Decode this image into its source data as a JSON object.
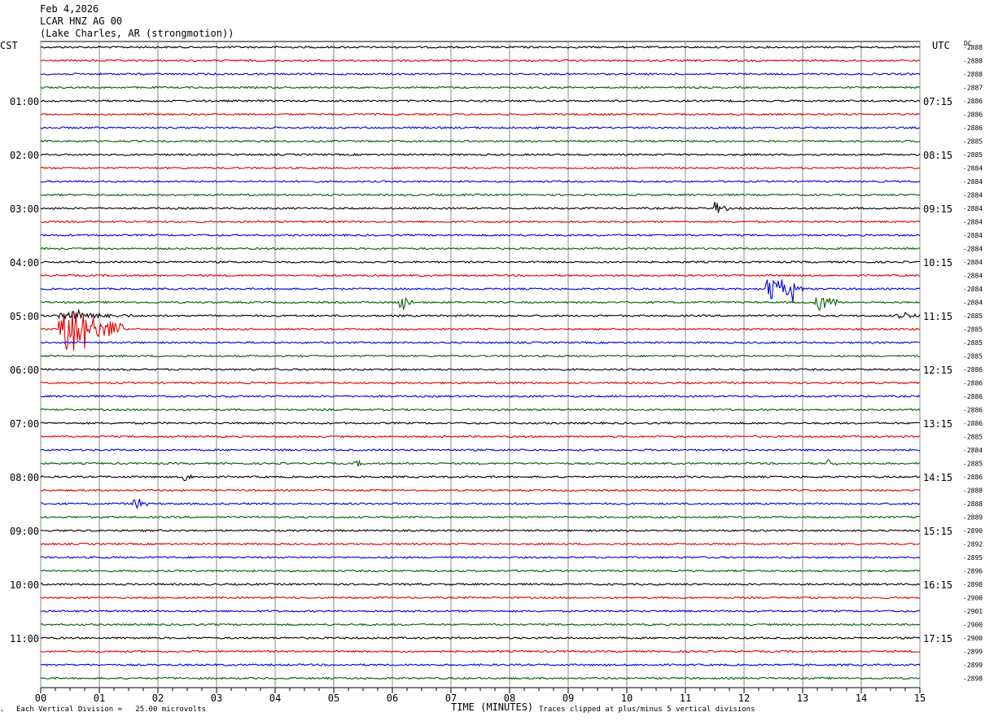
{
  "header": {
    "date": "Feb 4,2026",
    "station": "LCAR HNZ AG 00",
    "location": "(Lake Charles, AR (strongmotion))"
  },
  "left_zone_label": "CST",
  "right_zone_label": "UTC",
  "dc_label": "DC",
  "footer": {
    "scale_note": "Each Vertical Division =   25.00 microvolts",
    "xlabel": "TIME (MINUTES)",
    "clip_note": "Traces clipped at plus/minus 5 vertical divisions"
  },
  "colors": [
    "#000000",
    "#e00000",
    "#0000e0",
    "#006000"
  ],
  "chart_data": {
    "type": "line",
    "subtype": "helicorder",
    "title": "Feb 4,2026 LCAR HNZ AG 00 (Lake Charles, AR (strongmotion))",
    "xlabel": "TIME (MINUTES)",
    "xlim": [
      0,
      15
    ],
    "x_ticks": [
      "00",
      "01",
      "02",
      "03",
      "04",
      "05",
      "06",
      "07",
      "08",
      "09",
      "10",
      "11",
      "12",
      "13",
      "14",
      "15"
    ],
    "minutes_per_line": 15,
    "line_count": 48,
    "grid": true,
    "left_time_labels": [
      {
        "line": 4,
        "label": "01:00"
      },
      {
        "line": 8,
        "label": "02:00"
      },
      {
        "line": 12,
        "label": "03:00"
      },
      {
        "line": 16,
        "label": "04:00"
      },
      {
        "line": 20,
        "label": "05:00"
      },
      {
        "line": 24,
        "label": "06:00"
      },
      {
        "line": 28,
        "label": "07:00"
      },
      {
        "line": 32,
        "label": "08:00"
      },
      {
        "line": 36,
        "label": "09:00"
      },
      {
        "line": 40,
        "label": "10:00"
      },
      {
        "line": 44,
        "label": "11:00"
      }
    ],
    "right_time_labels": [
      {
        "line": 4,
        "label": "07:15"
      },
      {
        "line": 8,
        "label": "08:15"
      },
      {
        "line": 12,
        "label": "09:15"
      },
      {
        "line": 16,
        "label": "10:15"
      },
      {
        "line": 20,
        "label": "11:15"
      },
      {
        "line": 24,
        "label": "12:15"
      },
      {
        "line": 28,
        "label": "13:15"
      },
      {
        "line": 32,
        "label": "14:15"
      },
      {
        "line": 36,
        "label": "15:15"
      },
      {
        "line": 40,
        "label": "16:15"
      },
      {
        "line": 44,
        "label": "17:15"
      }
    ],
    "dc_offsets": [
      "-2888",
      "-2888",
      "-2888",
      "-2887",
      "-2886",
      "-2886",
      "-2886",
      "-2885",
      "-2885",
      "-2884",
      "-2884",
      "-2884",
      "-2884",
      "-2884",
      "-2884",
      "-2884",
      "-2884",
      "-2884",
      "-2884",
      "-2884",
      "-2885",
      "-2885",
      "-2885",
      "-2885",
      "-2886",
      "-2886",
      "-2886",
      "-2886",
      "-2886",
      "-2885",
      "-2884",
      "-2885",
      "-2886",
      "-2888",
      "-2888",
      "-2889",
      "-2890",
      "-2892",
      "-2895",
      "-2896",
      "-2898",
      "-2900",
      "-2901",
      "-2900",
      "-2900",
      "-2899",
      "-2899",
      "-2898"
    ],
    "events": [
      {
        "line": 12,
        "minute": 11.45,
        "amplitude": 4,
        "duration": 0.3
      },
      {
        "line": 18,
        "minute": 12.35,
        "amplitude": 7,
        "duration": 0.6
      },
      {
        "line": 18,
        "minute": 12.7,
        "amplitude": 6,
        "duration": 0.3
      },
      {
        "line": 19,
        "minute": 6.1,
        "amplitude": 5,
        "duration": 0.25
      },
      {
        "line": 19,
        "minute": 13.2,
        "amplitude": 5,
        "duration": 0.4
      },
      {
        "line": 20,
        "minute": 0.3,
        "amplitude": 3,
        "duration": 1.3
      },
      {
        "line": 20,
        "minute": 14.6,
        "amplitude": 3,
        "duration": 0.4
      },
      {
        "line": 21,
        "minute": 0.3,
        "amplitude": 14,
        "duration": 1.1
      },
      {
        "line": 31,
        "minute": 5.35,
        "amplitude": 2,
        "duration": 0.2
      },
      {
        "line": 31,
        "minute": 13.4,
        "amplitude": 3,
        "duration": 0.2
      },
      {
        "line": 32,
        "minute": 2.4,
        "amplitude": 4,
        "duration": 0.2
      },
      {
        "line": 34,
        "minute": 1.55,
        "amplitude": 4,
        "duration": 0.3
      }
    ],
    "scale": "Each Vertical Division = 25.00 microvolts",
    "clip": "Traces clipped at plus/minus 5 vertical divisions"
  }
}
